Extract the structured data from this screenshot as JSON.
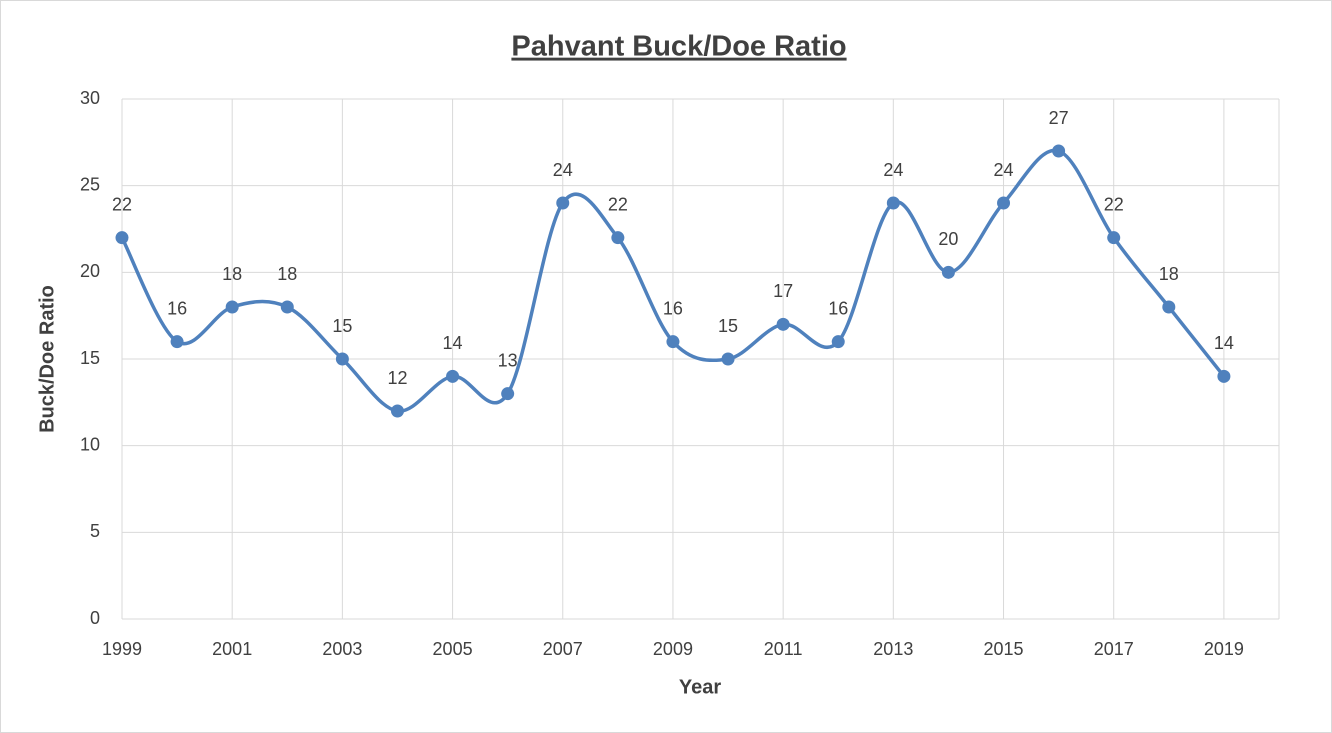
{
  "chart_data": {
    "type": "line",
    "title": "Pahvant Buck/Doe Ratio",
    "x_label": "Year",
    "y_label": "Buck/Doe Ratio",
    "x": [
      1999,
      2000,
      2001,
      2002,
      2003,
      2004,
      2005,
      2006,
      2007,
      2008,
      2009,
      2010,
      2011,
      2012,
      2013,
      2014,
      2015,
      2016,
      2017,
      2018,
      2019
    ],
    "values": [
      22,
      16,
      18,
      18,
      15,
      12,
      14,
      13,
      24,
      22,
      16,
      15,
      17,
      16,
      24,
      20,
      24,
      27,
      22,
      18,
      14
    ],
    "color": "#4f81bd",
    "smooth": true,
    "xlim": [
      1999,
      2020
    ],
    "xticks": [
      1999,
      2001,
      2003,
      2005,
      2007,
      2009,
      2011,
      2013,
      2015,
      2017,
      2019
    ],
    "ylim": [
      0,
      30
    ],
    "yticks": [
      0,
      5,
      10,
      15,
      20,
      25,
      30
    ],
    "grid": true
  }
}
